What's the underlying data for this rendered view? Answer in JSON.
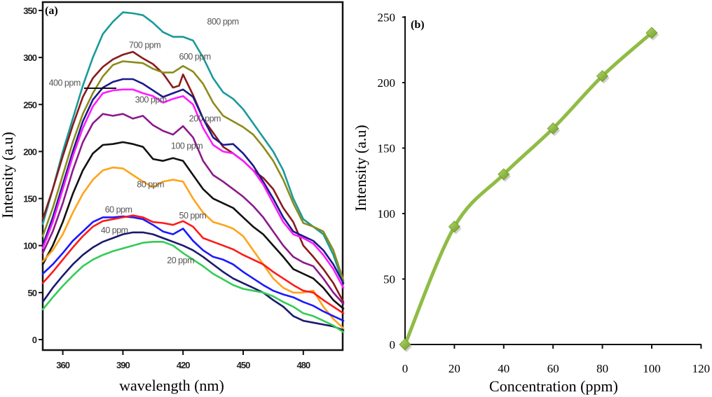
{
  "chart_data": [
    {
      "type": "line",
      "panel_label": "(a)",
      "title": "",
      "xlabel": "wavelength (nm)",
      "ylabel": "Intensity (a.u)",
      "xlim": [
        350,
        500
      ],
      "ylim": [
        0,
        359
      ],
      "xticks": [
        360,
        390,
        420,
        450,
        480
      ],
      "yticks": [
        0,
        50,
        100,
        150,
        200,
        250,
        300,
        350
      ],
      "grid": false,
      "legend": "inline labels",
      "series": [
        {
          "name": "800 ppm",
          "color": "#1a9a9a",
          "x": [
            350,
            355,
            360,
            365,
            370,
            375,
            380,
            385,
            390,
            395,
            400,
            405,
            410,
            415,
            420,
            425,
            430,
            435,
            440,
            445,
            450,
            455,
            460,
            465,
            470,
            475,
            480,
            485,
            490,
            495,
            500
          ],
          "y": [
            123,
            160,
            200,
            235,
            270,
            300,
            325,
            338,
            348,
            347,
            345,
            337,
            327,
            322,
            322,
            318,
            300,
            278,
            263,
            256,
            245,
            230,
            215,
            200,
            180,
            150,
            128,
            120,
            112,
            90,
            60
          ]
        },
        {
          "name": "700 ppm",
          "color": "#8b1a1a",
          "x": [
            350,
            355,
            360,
            365,
            370,
            375,
            380,
            385,
            390,
            395,
            400,
            405,
            410,
            415,
            418,
            420,
            425,
            430,
            435,
            440,
            445,
            450,
            455,
            460,
            465,
            470,
            475,
            480,
            485,
            490,
            495,
            500
          ],
          "y": [
            128,
            160,
            195,
            228,
            258,
            278,
            290,
            298,
            303,
            306,
            299,
            293,
            283,
            268,
            270,
            282,
            260,
            235,
            220,
            205,
            198,
            190,
            180,
            172,
            160,
            140,
            125,
            100,
            88,
            75,
            60,
            40
          ]
        },
        {
          "name": "600 ppm",
          "color": "#8b8b1a",
          "x": [
            350,
            355,
            360,
            365,
            370,
            375,
            380,
            385,
            390,
            395,
            400,
            405,
            410,
            415,
            420,
            425,
            430,
            435,
            440,
            445,
            450,
            455,
            460,
            465,
            470,
            475,
            480,
            485,
            490,
            495,
            500
          ],
          "y": [
            110,
            140,
            175,
            210,
            240,
            262,
            280,
            292,
            296,
            295,
            294,
            288,
            284,
            284,
            291,
            285,
            272,
            252,
            238,
            232,
            226,
            218,
            205,
            190,
            170,
            145,
            124,
            120,
            115,
            95,
            63
          ]
        },
        {
          "name": "400 ppm",
          "color": "#1a1a8b",
          "x": [
            350,
            355,
            360,
            365,
            370,
            375,
            380,
            385,
            390,
            395,
            400,
            405,
            410,
            415,
            420,
            425,
            430,
            435,
            440,
            445,
            450,
            455,
            460,
            465,
            470,
            475,
            480,
            485,
            490,
            495,
            500
          ],
          "y": [
            100,
            130,
            165,
            200,
            232,
            255,
            268,
            274,
            277,
            277,
            272,
            265,
            258,
            262,
            266,
            258,
            235,
            215,
            207,
            208,
            198,
            185,
            168,
            150,
            130,
            115,
            110,
            105,
            95,
            80,
            60
          ]
        },
        {
          "name": "300 ppm",
          "color": "#ff1aff",
          "x": [
            350,
            355,
            360,
            365,
            370,
            375,
            380,
            385,
            390,
            395,
            400,
            405,
            410,
            415,
            420,
            425,
            430,
            435,
            440,
            445,
            450,
            455,
            460,
            465,
            470,
            475,
            480,
            485,
            490,
            495,
            500
          ],
          "y": [
            97,
            125,
            160,
            195,
            225,
            248,
            262,
            265,
            266,
            266,
            262,
            259,
            252,
            256,
            259,
            250,
            225,
            207,
            200,
            198,
            190,
            180,
            165,
            145,
            125,
            112,
            108,
            102,
            90,
            75,
            55
          ]
        },
        {
          "name": "200 ppm",
          "color": "#8b1a8b",
          "x": [
            350,
            355,
            360,
            365,
            370,
            375,
            380,
            385,
            390,
            395,
            400,
            405,
            410,
            415,
            420,
            425,
            430,
            435,
            440,
            445,
            450,
            455,
            460,
            465,
            470,
            475,
            480,
            485,
            490,
            495,
            500
          ],
          "y": [
            92,
            115,
            145,
            180,
            210,
            230,
            240,
            238,
            240,
            235,
            238,
            228,
            222,
            218,
            227,
            215,
            190,
            175,
            168,
            160,
            152,
            142,
            130,
            115,
            100,
            88,
            82,
            78,
            65,
            50,
            38
          ]
        },
        {
          "name": "100 ppm",
          "color": "#111111",
          "x": [
            350,
            355,
            360,
            365,
            370,
            375,
            380,
            385,
            390,
            395,
            400,
            405,
            410,
            415,
            420,
            425,
            430,
            435,
            440,
            445,
            450,
            455,
            460,
            465,
            470,
            475,
            480,
            485,
            490,
            495,
            500
          ],
          "y": [
            80,
            100,
            125,
            155,
            180,
            198,
            207,
            208,
            210,
            208,
            205,
            192,
            190,
            193,
            190,
            175,
            160,
            150,
            145,
            140,
            130,
            120,
            112,
            100,
            88,
            75,
            70,
            65,
            55,
            42,
            33
          ]
        },
        {
          "name": "80 ppm",
          "color": "#ffa31a",
          "x": [
            350,
            355,
            360,
            365,
            370,
            375,
            380,
            385,
            390,
            395,
            400,
            405,
            410,
            415,
            420,
            425,
            430,
            435,
            440,
            445,
            450,
            455,
            460,
            465,
            470,
            475,
            480,
            485,
            490,
            495,
            500
          ],
          "y": [
            83,
            95,
            112,
            135,
            155,
            170,
            180,
            183,
            182,
            175,
            168,
            162,
            168,
            170,
            168,
            150,
            135,
            125,
            122,
            118,
            110,
            95,
            80,
            65,
            55,
            50,
            50,
            52,
            35,
            22,
            12
          ]
        },
        {
          "name": "60 ppm",
          "color": "#1a1aff",
          "x": [
            350,
            355,
            360,
            365,
            370,
            375,
            380,
            385,
            390,
            395,
            400,
            405,
            410,
            415,
            420,
            425,
            430,
            435,
            440,
            445,
            450,
            455,
            460,
            465,
            470,
            475,
            480,
            485,
            490,
            495,
            500
          ],
          "y": [
            70,
            80,
            92,
            105,
            115,
            125,
            130,
            130,
            131,
            130,
            128,
            122,
            115,
            112,
            118,
            105,
            95,
            88,
            85,
            80,
            72,
            65,
            58,
            52,
            48,
            45,
            40,
            36,
            30,
            25,
            20
          ]
        },
        {
          "name": "50 ppm",
          "color": "#ff1a1a",
          "x": [
            350,
            355,
            360,
            365,
            370,
            375,
            380,
            385,
            390,
            395,
            400,
            405,
            410,
            415,
            420,
            425,
            430,
            435,
            440,
            445,
            450,
            455,
            460,
            465,
            470,
            475,
            480,
            485,
            490,
            495,
            500
          ],
          "y": [
            60,
            72,
            85,
            98,
            110,
            120,
            126,
            128,
            130,
            132,
            130,
            125,
            124,
            122,
            126,
            120,
            108,
            104,
            100,
            96,
            90,
            85,
            80,
            72,
            65,
            58,
            52,
            50,
            42,
            35,
            28
          ]
        },
        {
          "name": "40 ppm",
          "color": "#1a1a6e",
          "x": [
            350,
            355,
            360,
            365,
            370,
            375,
            380,
            385,
            390,
            395,
            400,
            405,
            410,
            415,
            420,
            425,
            430,
            435,
            440,
            445,
            450,
            455,
            460,
            465,
            470,
            475,
            480,
            485,
            490,
            495,
            500
          ],
          "y": [
            40,
            55,
            68,
            80,
            90,
            98,
            104,
            108,
            112,
            114,
            114,
            112,
            108,
            104,
            100,
            95,
            88,
            80,
            72,
            65,
            60,
            55,
            50,
            42,
            35,
            25,
            20,
            18,
            16,
            14,
            10
          ]
        },
        {
          "name": "20 ppm",
          "color": "#33cc55",
          "x": [
            350,
            355,
            360,
            365,
            370,
            375,
            380,
            385,
            390,
            395,
            400,
            405,
            410,
            415,
            420,
            425,
            430,
            435,
            440,
            445,
            450,
            455,
            460,
            465,
            470,
            475,
            480,
            485,
            490,
            495,
            500
          ],
          "y": [
            32,
            45,
            57,
            68,
            78,
            85,
            90,
            94,
            97,
            100,
            103,
            104,
            104,
            100,
            92,
            85,
            78,
            70,
            64,
            58,
            54,
            52,
            50,
            46,
            40,
            35,
            28,
            25,
            20,
            15,
            8
          ]
        }
      ],
      "annotations": [
        {
          "text": "800 ppm",
          "x": 432,
          "y": 335
        },
        {
          "text": "700 ppm",
          "x": 393,
          "y": 310
        },
        {
          "text": "600 ppm",
          "x": 418,
          "y": 298
        },
        {
          "text": "400 ppm",
          "x": 353,
          "y": 270
        },
        {
          "text": "300 ppm",
          "x": 396,
          "y": 252
        },
        {
          "text": "200 ppm",
          "x": 423,
          "y": 232
        },
        {
          "text": "100 ppm",
          "x": 414,
          "y": 203
        },
        {
          "text": "80 ppm",
          "x": 397,
          "y": 162
        },
        {
          "text": "60 ppm",
          "x": 381,
          "y": 135
        },
        {
          "text": "50 ppm",
          "x": 418,
          "y": 129
        },
        {
          "text": "40 ppm",
          "x": 379,
          "y": 113
        },
        {
          "text": "20 ppm",
          "x": 412,
          "y": 81
        }
      ]
    },
    {
      "type": "line",
      "panel_label": "(b)",
      "title": "",
      "xlabel": "Concentration (ppm)",
      "ylabel": "Intensity (a.u)",
      "xlim": [
        0,
        120
      ],
      "ylim": [
        0,
        250
      ],
      "xticks": [
        0,
        20,
        40,
        60,
        80,
        100,
        120
      ],
      "yticks": [
        0,
        50,
        100,
        150,
        200,
        250
      ],
      "grid": false,
      "legend": "none",
      "series": [
        {
          "name": "Intensity",
          "color": "#8fbc45",
          "marker": "diamond",
          "smooth": true,
          "x": [
            0,
            20,
            40,
            60,
            80,
            100
          ],
          "y": [
            0,
            90,
            130,
            165,
            205,
            238
          ]
        }
      ]
    }
  ]
}
